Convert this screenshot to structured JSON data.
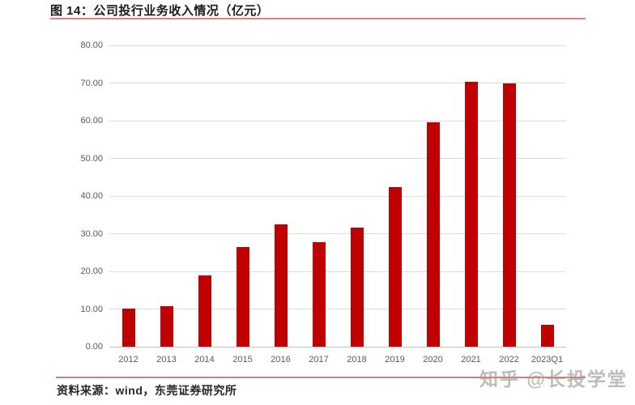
{
  "header": {
    "title": "图 14：公司投行业务收入情况（亿元）"
  },
  "footer": {
    "source": "资料来源：wind，东莞证券研究所",
    "watermark": "知乎 @长投学堂"
  },
  "colors": {
    "bar": "#c00000",
    "grid": "#dcdcdc",
    "axis_line": "#c2c2c2",
    "tick_text": "#595959",
    "title_rule": "#dd8282",
    "footer_rule": "#c98383"
  },
  "chart_data": {
    "type": "bar",
    "title": "公司投行业务收入情况（亿元）",
    "xlabel": "",
    "ylabel": "",
    "categories": [
      "2012",
      "2013",
      "2014",
      "2015",
      "2016",
      "2017",
      "2018",
      "2019",
      "2020",
      "2021",
      "2022",
      "2023Q1"
    ],
    "values": [
      10.1,
      10.8,
      18.9,
      26.4,
      32.5,
      27.8,
      31.6,
      42.4,
      59.6,
      70.4,
      70.0,
      5.9
    ],
    "ylim": [
      0,
      80
    ],
    "grid": true,
    "legend": false,
    "yticks": [
      {
        "value": 80,
        "label": "80.00"
      },
      {
        "value": 70,
        "label": "70.00"
      },
      {
        "value": 60,
        "label": "60.00"
      },
      {
        "value": 50,
        "label": "50.00"
      },
      {
        "value": 40,
        "label": "40.00"
      },
      {
        "value": 30,
        "label": "30.00"
      },
      {
        "value": 20,
        "label": "20.00"
      },
      {
        "value": 10,
        "label": "10.00"
      },
      {
        "value": 0,
        "label": "0.00"
      }
    ]
  }
}
